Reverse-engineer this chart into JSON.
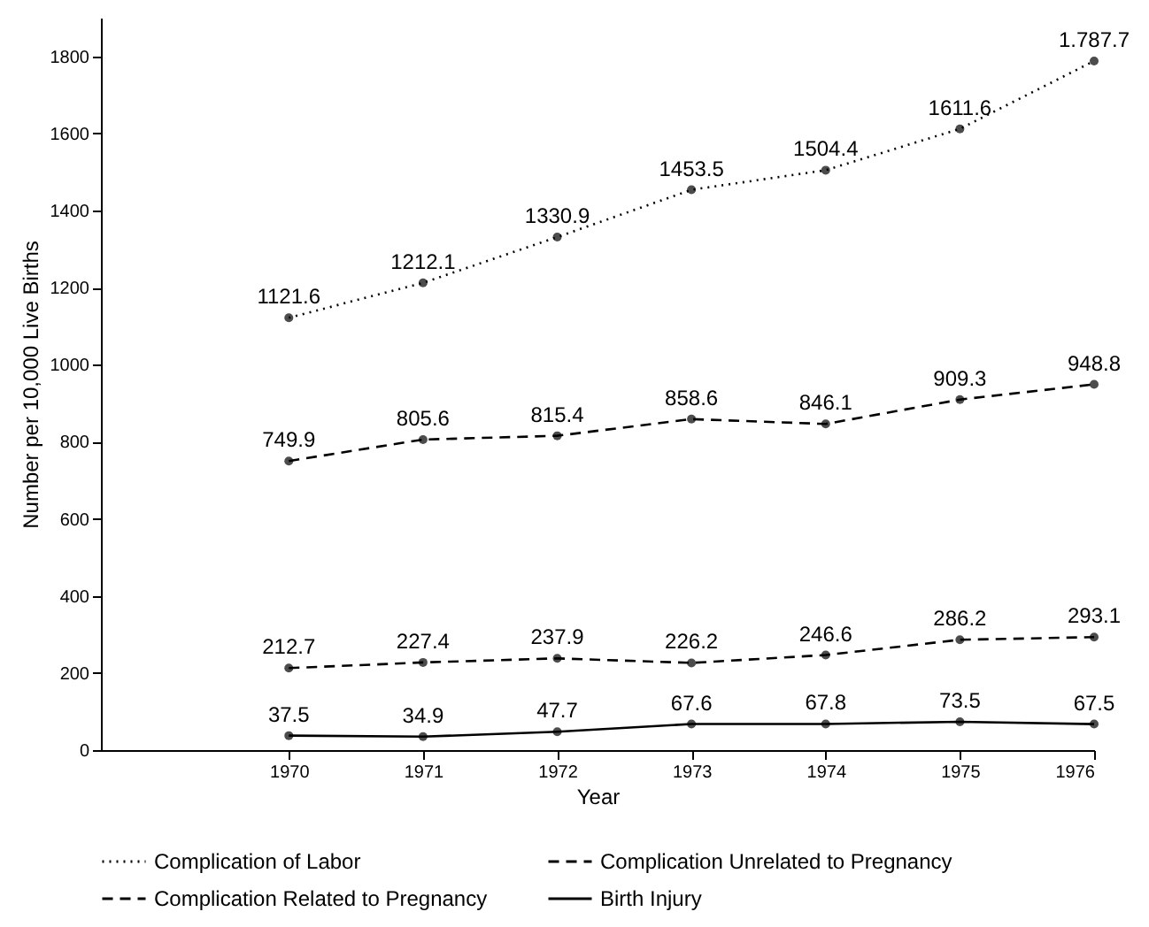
{
  "chart_data": {
    "type": "line",
    "xlabel": "Year",
    "ylabel": "Number per 10,000 Live Births",
    "x": [
      1970,
      1971,
      1972,
      1973,
      1974,
      1975,
      1976
    ],
    "xlim": [
      1968.6,
      1976
    ],
    "xticks": [
      1970,
      1971,
      1972,
      1973,
      1974,
      1975,
      1976
    ],
    "ylim": [
      0,
      1900
    ],
    "yticks": [
      0,
      200,
      400,
      600,
      800,
      1000,
      1200,
      1400,
      1600,
      1800
    ],
    "grid": false,
    "legend": "bottom",
    "marker": "circle",
    "series": [
      {
        "name": "Complication of Labor",
        "color": "#000000",
        "line_style": "dotted",
        "values": [
          1121.6,
          1212.1,
          1330.9,
          1453.5,
          1504.4,
          1611.6,
          1787.7
        ],
        "value_labels": [
          "1121.6",
          "1212.1",
          "1330.9",
          "1453.5",
          "1504.4",
          "1611.6",
          "1.787.7"
        ]
      },
      {
        "name": "Complication Unrelated to Pregnancy",
        "color": "#000000",
        "line_style": "dashed",
        "values": [
          212.7,
          227.4,
          237.9,
          226.2,
          246.6,
          286.2,
          293.1
        ],
        "value_labels": [
          "212.7",
          "227.4",
          "237.9",
          "226.2",
          "246.6",
          "286.2",
          "293.1"
        ]
      },
      {
        "name": "Complication Related to Pregnancy",
        "color": "#000000",
        "line_style": "dashed",
        "values": [
          749.9,
          805.6,
          815.4,
          858.6,
          846.1,
          909.3,
          948.8
        ],
        "value_labels": [
          "749.9",
          "805.6",
          "815.4",
          "858.6",
          "846.1",
          "909.3",
          "948.8"
        ]
      },
      {
        "name": "Birth Injury",
        "color": "#000000",
        "line_style": "solid",
        "values": [
          37.5,
          34.9,
          47.7,
          67.6,
          67.8,
          73.5,
          67.5
        ],
        "value_labels": [
          "37.5",
          "34.9",
          "47.7",
          "67.6",
          "67.8",
          "73.5",
          "67.5"
        ]
      }
    ]
  }
}
